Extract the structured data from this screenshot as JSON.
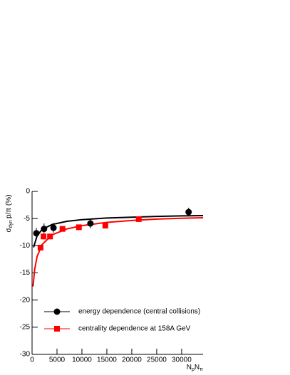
{
  "chart_data": {
    "type": "scatter",
    "y_label": {
      "main": "σ",
      "sub": "dyn",
      "rest": "p/π (%)"
    },
    "x_label": {
      "n1": "N",
      "s1": "p",
      "n2": "N",
      "s2": "π"
    },
    "xlim": [
      0,
      34300
    ],
    "ylim": [
      -30,
      0
    ],
    "xticks": [
      0,
      5000,
      10000,
      15000,
      20000,
      25000,
      30000
    ],
    "yticks": [
      0,
      -5,
      -10,
      -15,
      -20,
      -25,
      -30
    ],
    "series": [
      {
        "name": "energy dependence (central collisions)",
        "color": "#000000",
        "marker": "circle",
        "x": [
          860,
          2400,
          4300,
          11700,
          31400
        ],
        "values": [
          -7.7,
          -6.9,
          -6.7,
          -5.9,
          -3.8
        ],
        "errors": [
          1.0,
          1.0,
          0.9,
          0.9,
          0.8
        ]
      },
      {
        "name": "centrality dependence at 158A GeV",
        "color": "#ff0000",
        "marker": "square",
        "x": [
          1700,
          2300,
          3600,
          6100,
          9400,
          14700,
          21400
        ],
        "values": [
          -10.35,
          -8.3,
          -8.3,
          -6.9,
          -6.6,
          -6.3,
          -5.1
        ]
      }
    ],
    "fits": [
      {
        "color": "#000000",
        "x": [
          300,
          1000,
          2000,
          4000,
          7000,
          10000,
          15000,
          20000,
          25000,
          30000,
          34300
        ],
        "values": [
          -10.3,
          -8.2,
          -7.0,
          -6.1,
          -5.5,
          -5.2,
          -4.9,
          -4.75,
          -4.6,
          -4.5,
          -4.45
        ]
      },
      {
        "color": "#ff0000",
        "x": [
          200,
          500,
          1000,
          2000,
          4000,
          7000,
          10000,
          15000,
          20000,
          25000,
          30000,
          34300
        ],
        "values": [
          -17.5,
          -14.5,
          -12.0,
          -9.8,
          -8.0,
          -6.9,
          -6.3,
          -5.7,
          -5.35,
          -5.1,
          -4.95,
          -4.85
        ]
      }
    ]
  }
}
